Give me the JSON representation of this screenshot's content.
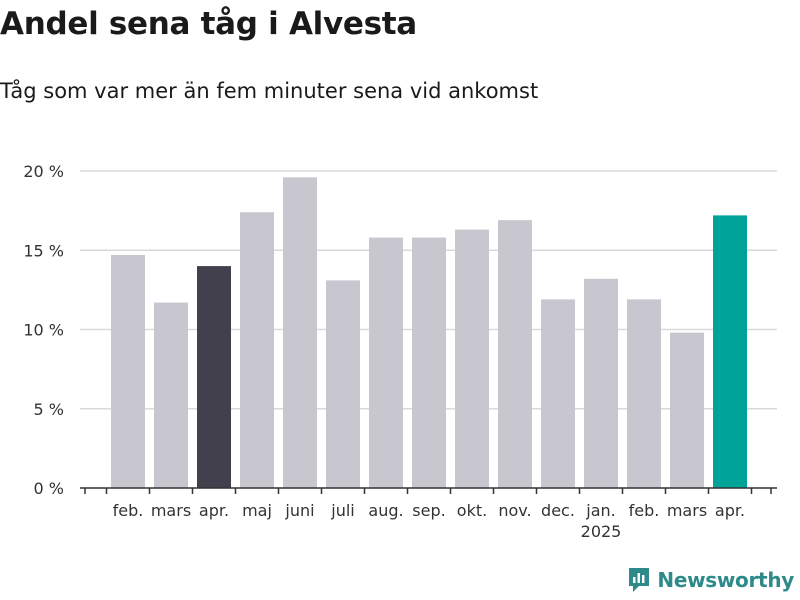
{
  "header": {
    "title": "Andel sena tåg i Alvesta",
    "subtitle": "Tåg som var mer än fem minuter sena vid ankomst"
  },
  "brand": {
    "name": "Newsworthy",
    "icon": "newsworthy-logo-icon",
    "color": "#2e8a8a"
  },
  "chart_data": {
    "type": "bar",
    "title": "Andel sena tåg i Alvesta",
    "subtitle": "Tåg som var mer än fem minuter sena vid ankomst",
    "xlabel": "",
    "ylabel": "",
    "ylim": [
      0,
      20
    ],
    "yticks": [
      0,
      5,
      10,
      15,
      20
    ],
    "ytick_labels": [
      "0 %",
      "5 %",
      "10 %",
      "15 %",
      "20 %"
    ],
    "grid": true,
    "categories": [
      "feb.",
      "mars",
      "apr.",
      "maj",
      "juni",
      "juli",
      "aug.",
      "sep.",
      "okt.",
      "nov.",
      "dec.",
      "jan.",
      "feb.",
      "mars",
      "apr."
    ],
    "year_labels": [
      {
        "category_index": 11,
        "text": "2025"
      }
    ],
    "values": [
      14.7,
      11.7,
      14.0,
      17.4,
      19.6,
      13.1,
      15.8,
      15.8,
      16.3,
      16.9,
      11.9,
      13.2,
      11.9,
      9.8,
      17.2
    ],
    "colors": [
      "#c8c7d0",
      "#c8c7d0",
      "#42404d",
      "#c8c7d0",
      "#c8c7d0",
      "#c8c7d0",
      "#c8c7d0",
      "#c8c7d0",
      "#c8c7d0",
      "#c8c7d0",
      "#c8c7d0",
      "#c8c7d0",
      "#c8c7d0",
      "#c8c7d0",
      "#00a398"
    ]
  }
}
